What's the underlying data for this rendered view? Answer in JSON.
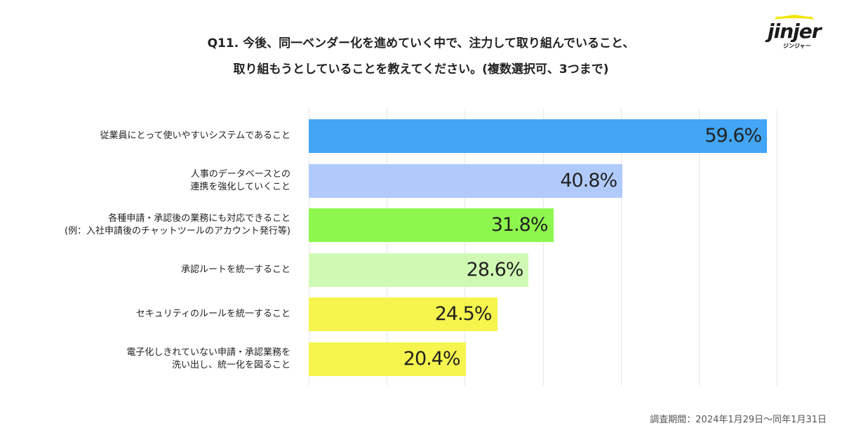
{
  "title": {
    "line1": "Q11. 今後、同一ベンダー化を進めていく中で、注力して取り組んでいること、",
    "line2": "取り組もうとしていることを教えてください。(複数選択可、3つまで)"
  },
  "logo": {
    "word": "jinjer",
    "kana": "ジンジャー"
  },
  "footnote": "調査期間：2024年1月29日〜同年1月31日",
  "chart_data": {
    "type": "bar",
    "orientation": "horizontal",
    "title": "Q11. 今後、同一ベンダー化を進めていく中で、注力して取り組んでいること、取り組もうとしていることを教えてください。(複数選択可、3つまで)",
    "unit": "%",
    "xlim": [
      0,
      60
    ],
    "grid": true,
    "categories": [
      [
        "従業員にとって使いやすいシステムであること"
      ],
      [
        "人事のデータベースとの",
        "連携を強化していくこと"
      ],
      [
        "各種申請・承認後の業務にも対応できること",
        "(例：入社申請後のチャットツールのアカウント発行等)"
      ],
      [
        "承認ルートを統一すること"
      ],
      [
        "セキュリティのルールを統一すること"
      ],
      [
        "電子化しきれていない申請・承認業務を",
        "洗い出し、統一化を図ること"
      ]
    ],
    "values": [
      59.6,
      40.8,
      31.8,
      28.6,
      24.5,
      20.4
    ],
    "labels": [
      "59.6%",
      "40.8%",
      "31.8%",
      "28.6%",
      "24.5%",
      "20.4%"
    ],
    "colors": [
      "#42a5f5",
      "#b0cbfb",
      "#8ef74e",
      "#d0fab4",
      "#f5f54e",
      "#f5f54e"
    ]
  }
}
